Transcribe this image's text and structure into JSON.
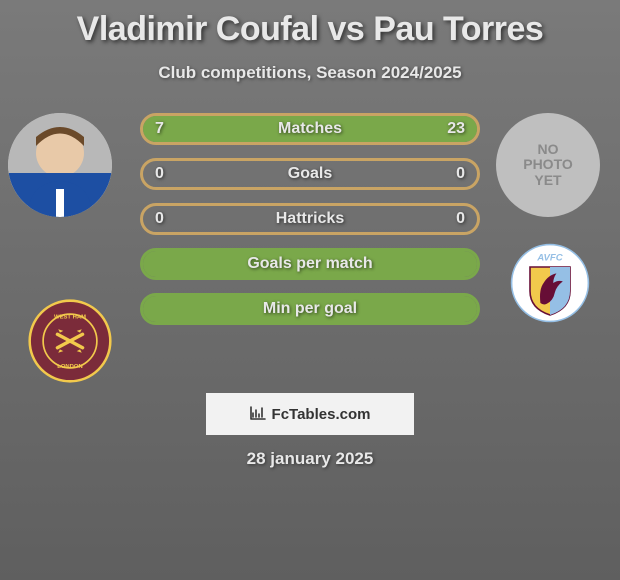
{
  "title": "Vladimir Coufal vs Pau Torres",
  "subtitle": "Club competitions, Season 2024/2025",
  "footer_site": "FcTables.com",
  "footer_date": "28 january 2025",
  "colors": {
    "title_text": "#e8e8e8",
    "bar_border_light": "#c9a464",
    "bar_border_green": "#7aa84a",
    "bar_label_text": "#e8e8e8",
    "fill_green": "#7aa84a",
    "no_photo_bg": "#bfbfbf",
    "no_photo_text": "#8a8a8a"
  },
  "player_left": {
    "name": "Vladimir Coufal",
    "has_photo": true,
    "club": "West Ham United",
    "club_badge_bg": "#7b2b3a",
    "club_badge_ring": "#f2c94c"
  },
  "player_right": {
    "name": "Pau Torres",
    "has_photo": false,
    "no_photo_text": "NO\nPHOTO\nYET",
    "club": "AVFC",
    "club_badge_bg": "#ffffff",
    "club_badge_accent1": "#95bfe5",
    "club_badge_accent2": "#f2c94c",
    "club_badge_accent3": "#670e36"
  },
  "bars": [
    {
      "label": "Matches",
      "left": "7",
      "right": "23",
      "left_pct": 23,
      "right_pct": 77,
      "border": "#c9a464"
    },
    {
      "label": "Goals",
      "left": "0",
      "right": "0",
      "left_pct": 0,
      "right_pct": 0,
      "border": "#c9a464"
    },
    {
      "label": "Hattricks",
      "left": "0",
      "right": "0",
      "left_pct": 0,
      "right_pct": 0,
      "border": "#c9a464"
    },
    {
      "label": "Goals per match",
      "left": "",
      "right": "",
      "left_pct": 0,
      "right_pct": 0,
      "border": "#7aa84a",
      "full_fill": "#7aa84a"
    },
    {
      "label": "Min per goal",
      "left": "",
      "right": "",
      "left_pct": 0,
      "right_pct": 0,
      "border": "#7aa84a",
      "full_fill": "#7aa84a"
    }
  ]
}
